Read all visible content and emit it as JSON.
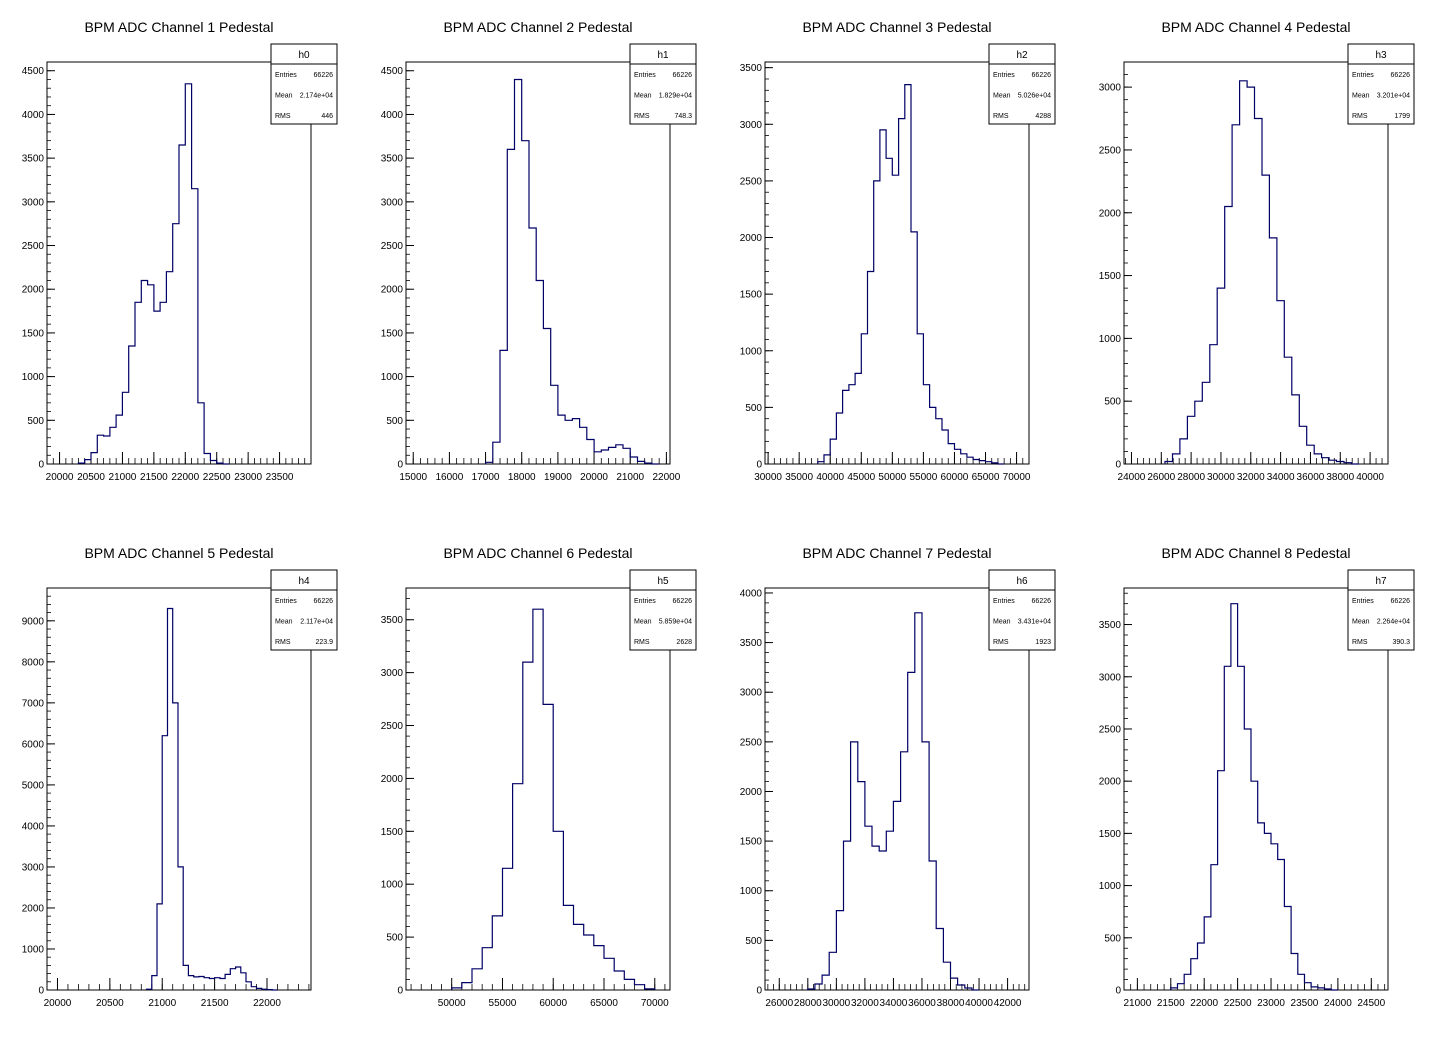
{
  "colors": {
    "line": "#000066",
    "axis": "#000000",
    "background": "#ffffff"
  },
  "chart_data": [
    {
      "type": "histogram",
      "title": "BPM ADC Channel 1 Pedestal",
      "xlim": [
        19800,
        24000
      ],
      "ylim": [
        0,
        4600
      ],
      "xticks": [
        20000,
        20500,
        21000,
        21500,
        22000,
        22500,
        23000,
        23500
      ],
      "xtick_labels": [
        "20000",
        "20500",
        "21000",
        "21500",
        "22000",
        "22500",
        "23000",
        "23500"
      ],
      "yticks": [
        0,
        500,
        1000,
        1500,
        2000,
        2500,
        3000,
        3500,
        4000,
        4500
      ],
      "stats": {
        "name": "h0",
        "entries": "66226",
        "mean": "2.174e+04",
        "rms": "446"
      },
      "x": [
        20350,
        20450,
        20550,
        20650,
        20750,
        20850,
        20950,
        21050,
        21150,
        21250,
        21350,
        21450,
        21550,
        21650,
        21750,
        21850,
        21950,
        22050,
        22150,
        22250,
        22350,
        22450,
        22550,
        22650
      ],
      "values": [
        10,
        50,
        130,
        330,
        320,
        420,
        560,
        820,
        1350,
        1850,
        2100,
        2050,
        1750,
        1850,
        2200,
        2750,
        3650,
        4350,
        3150,
        700,
        120,
        40,
        10,
        0
      ]
    },
    {
      "type": "histogram",
      "title": "BPM ADC Channel 2 Pedestal",
      "xlim": [
        14800,
        22100
      ],
      "ylim": [
        0,
        4600
      ],
      "xticks": [
        15000,
        16000,
        17000,
        18000,
        19000,
        20000,
        21000,
        22000
      ],
      "xtick_labels": [
        "15000",
        "16000",
        "17000",
        "18000",
        "19000",
        "20000",
        "21000",
        "22000"
      ],
      "yticks": [
        0,
        500,
        1000,
        1500,
        2000,
        2500,
        3000,
        3500,
        4000,
        4500
      ],
      "stats": {
        "name": "h1",
        "entries": "66226",
        "mean": "1.829e+04",
        "rms": "748.3"
      },
      "x": [
        17100,
        17300,
        17500,
        17700,
        17900,
        18100,
        18300,
        18500,
        18700,
        18900,
        19100,
        19300,
        19500,
        19700,
        19900,
        20100,
        20300,
        20500,
        20700,
        20900,
        21100,
        21300,
        21500,
        21700
      ],
      "values": [
        20,
        250,
        1300,
        3600,
        4400,
        3700,
        2700,
        2100,
        1550,
        900,
        560,
        500,
        520,
        420,
        280,
        140,
        160,
        190,
        220,
        180,
        80,
        30,
        10,
        0
      ]
    },
    {
      "type": "histogram",
      "title": "BPM ADC Channel 3 Pedestal",
      "xlim": [
        29500,
        72000
      ],
      "ylim": [
        0,
        3550
      ],
      "xticks": [
        30000,
        35000,
        40000,
        45000,
        50000,
        55000,
        60000,
        65000,
        70000
      ],
      "xtick_labels": [
        "30000",
        "35000",
        "40000",
        "45000",
        "50000",
        "55000",
        "60000",
        "65000",
        "70000"
      ],
      "yticks": [
        0,
        500,
        1000,
        1500,
        2000,
        2500,
        3000,
        3500
      ],
      "stats": {
        "name": "h2",
        "entries": "66226",
        "mean": "5.026e+04",
        "rms": "4288"
      },
      "x": [
        38500,
        39500,
        40500,
        41500,
        42500,
        43500,
        44500,
        45500,
        46500,
        47500,
        48500,
        49500,
        50500,
        51500,
        52500,
        53500,
        54500,
        55500,
        56500,
        57500,
        58500,
        59500,
        60500,
        61500,
        62500,
        63500,
        64500,
        65500,
        66500,
        67500
      ],
      "values": [
        20,
        80,
        220,
        450,
        650,
        700,
        800,
        1150,
        1700,
        2500,
        2950,
        2700,
        2550,
        3050,
        3350,
        2050,
        1150,
        700,
        500,
        400,
        300,
        180,
        130,
        90,
        60,
        40,
        30,
        20,
        10,
        0
      ]
    },
    {
      "type": "histogram",
      "title": "BPM ADC Channel 4 Pedestal",
      "xlim": [
        23500,
        41200
      ],
      "ylim": [
        0,
        3200
      ],
      "xticks": [
        24000,
        26000,
        28000,
        30000,
        32000,
        34000,
        36000,
        38000,
        40000
      ],
      "xtick_labels": [
        "24000",
        "26000",
        "28000",
        "30000",
        "32000",
        "34000",
        "36000",
        "38000",
        "40000"
      ],
      "yticks": [
        0,
        500,
        1000,
        1500,
        2000,
        2500,
        3000
      ],
      "stats": {
        "name": "h3",
        "entries": "66226",
        "mean": "3.201e+04",
        "rms": "1799"
      },
      "x": [
        26500,
        27000,
        27500,
        28000,
        28500,
        29000,
        29500,
        30000,
        30500,
        31000,
        31500,
        32000,
        32500,
        33000,
        33500,
        34000,
        34500,
        35000,
        35500,
        36000,
        36500,
        37000,
        37500,
        38000,
        38500,
        39000
      ],
      "values": [
        20,
        80,
        200,
        380,
        500,
        650,
        950,
        1400,
        2050,
        2700,
        3050,
        3000,
        2750,
        2300,
        1800,
        1300,
        850,
        550,
        300,
        150,
        80,
        50,
        30,
        20,
        10,
        0
      ]
    },
    {
      "type": "histogram",
      "title": "BPM ADC Channel 5 Pedestal",
      "xlim": [
        19900,
        22420
      ],
      "ylim": [
        0,
        9800
      ],
      "xticks": [
        20000,
        20500,
        21000,
        21500,
        22000
      ],
      "xtick_labels": [
        "20000",
        "20500",
        "21000",
        "21500",
        "22000"
      ],
      "yticks": [
        0,
        1000,
        2000,
        3000,
        4000,
        5000,
        6000,
        7000,
        8000,
        9000
      ],
      "stats": {
        "name": "h4",
        "entries": "66226",
        "mean": "2.117e+04",
        "rms": "223.9"
      },
      "x": [
        20875,
        20925,
        20975,
        21025,
        21075,
        21125,
        21175,
        21225,
        21275,
        21325,
        21375,
        21425,
        21475,
        21525,
        21575,
        21625,
        21675,
        21725,
        21775,
        21825,
        21875,
        21925,
        21975,
        22025,
        22075
      ],
      "values": [
        20,
        350,
        2100,
        6200,
        9300,
        7000,
        3000,
        600,
        350,
        320,
        330,
        300,
        280,
        300,
        280,
        380,
        520,
        560,
        420,
        200,
        80,
        40,
        20,
        10,
        0
      ]
    },
    {
      "type": "histogram",
      "title": "BPM ADC Channel 6 Pedestal",
      "xlim": [
        45500,
        71500
      ],
      "ylim": [
        0,
        3800
      ],
      "xticks": [
        50000,
        55000,
        60000,
        65000,
        70000
      ],
      "xtick_labels": [
        "50000",
        "55000",
        "60000",
        "65000",
        "70000"
      ],
      "yticks": [
        0,
        500,
        1000,
        1500,
        2000,
        2500,
        3000,
        3500
      ],
      "stats": {
        "name": "h5",
        "entries": "66226",
        "mean": "5.859e+04",
        "rms": "2628"
      },
      "x": [
        50500,
        51500,
        52500,
        53500,
        54500,
        55500,
        56500,
        57500,
        58500,
        59500,
        60500,
        61500,
        62500,
        63500,
        64500,
        65500,
        66500,
        67500,
        68500,
        69500
      ],
      "values": [
        20,
        70,
        200,
        400,
        700,
        1150,
        1950,
        3100,
        3600,
        2700,
        1500,
        800,
        620,
        520,
        420,
        300,
        180,
        100,
        50,
        10
      ]
    },
    {
      "type": "histogram",
      "title": "BPM ADC Channel 7 Pedestal",
      "xlim": [
        25000,
        43500
      ],
      "ylim": [
        0,
        4050
      ],
      "xticks": [
        26000,
        28000,
        30000,
        32000,
        34000,
        36000,
        38000,
        40000,
        42000
      ],
      "xtick_labels": [
        "26000",
        "28000",
        "30000",
        "32000",
        "34000",
        "36000",
        "38000",
        "40000",
        "42000"
      ],
      "yticks": [
        0,
        500,
        1000,
        1500,
        2000,
        2500,
        3000,
        3500,
        4000
      ],
      "stats": {
        "name": "h6",
        "entries": "66226",
        "mean": "3.431e+04",
        "rms": "1923"
      },
      "x": [
        28250,
        28750,
        29250,
        29750,
        30250,
        30750,
        31250,
        31750,
        32250,
        32750,
        33250,
        33750,
        34250,
        34750,
        35250,
        35750,
        36250,
        36750,
        37250,
        37750,
        38250,
        38750,
        39250,
        39750
      ],
      "values": [
        10,
        60,
        150,
        380,
        800,
        1500,
        2500,
        2100,
        1650,
        1450,
        1400,
        1600,
        1900,
        2400,
        3200,
        3800,
        2500,
        1300,
        620,
        280,
        120,
        50,
        20,
        0
      ]
    },
    {
      "type": "histogram",
      "title": "BPM ADC Channel 8 Pedestal",
      "xlim": [
        20800,
        24750
      ],
      "ylim": [
        0,
        3850
      ],
      "xticks": [
        21000,
        21500,
        22000,
        22500,
        23000,
        23500,
        24000,
        24500
      ],
      "xtick_labels": [
        "21000",
        "21500",
        "22000",
        "22500",
        "23000",
        "23500",
        "24000",
        "24500"
      ],
      "yticks": [
        0,
        500,
        1000,
        1500,
        2000,
        2500,
        3000,
        3500
      ],
      "stats": {
        "name": "h7",
        "entries": "66226",
        "mean": "2.264e+04",
        "rms": "390.3"
      },
      "x": [
        21550,
        21650,
        21750,
        21850,
        21950,
        22050,
        22150,
        22250,
        22350,
        22450,
        22550,
        22650,
        22750,
        22850,
        22950,
        23050,
        23150,
        23250,
        23350,
        23450,
        23550,
        23650,
        23750,
        23850,
        23950
      ],
      "values": [
        20,
        60,
        150,
        300,
        450,
        700,
        1200,
        2100,
        3100,
        3700,
        3100,
        2500,
        2000,
        1600,
        1500,
        1400,
        1250,
        800,
        350,
        150,
        70,
        30,
        20,
        10,
        0
      ]
    }
  ],
  "stat_labels": {
    "entries": "Entries",
    "mean": "Mean",
    "rms": "RMS"
  }
}
